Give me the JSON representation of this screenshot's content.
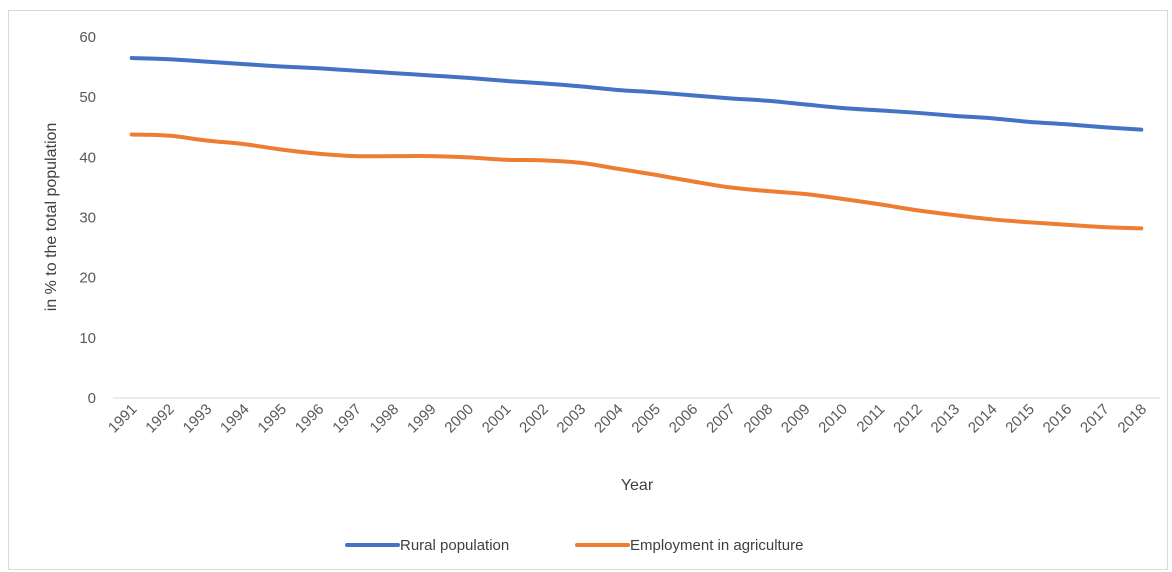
{
  "chart_data": {
    "type": "line",
    "title": "",
    "xlabel": "Year",
    "ylabel": "in % to the total population",
    "ylim": [
      0,
      60
    ],
    "yticks": [
      0,
      10,
      20,
      30,
      40,
      50,
      60
    ],
    "grid": false,
    "legend": "bottom",
    "x": [
      "1991",
      "1992",
      "1993",
      "1994",
      "1995",
      "1996",
      "1997",
      "1998",
      "1999",
      "2000",
      "2001",
      "2002",
      "2003",
      "2004",
      "2005",
      "2006",
      "2007",
      "2008",
      "2009",
      "2010",
      "2011",
      "2012",
      "2013",
      "2014",
      "2015",
      "2016",
      "2017",
      "2018"
    ],
    "series": [
      {
        "name": "Rural population",
        "color": "#4472C4",
        "values": [
          56.5,
          56.3,
          55.9,
          55.5,
          55.1,
          54.8,
          54.4,
          54.0,
          53.6,
          53.2,
          52.7,
          52.3,
          51.8,
          51.2,
          50.8,
          50.3,
          49.8,
          49.4,
          48.8,
          48.2,
          47.8,
          47.4,
          46.9,
          46.5,
          45.9,
          45.5,
          45.0,
          44.6
        ]
      },
      {
        "name": "Employment in agriculture",
        "color": "#ED7D31",
        "values": [
          43.8,
          43.6,
          42.8,
          42.2,
          41.3,
          40.6,
          40.2,
          40.2,
          40.2,
          40.0,
          39.6,
          39.5,
          39.1,
          38.1,
          37.1,
          36.0,
          35.0,
          34.4,
          33.9,
          33.1,
          32.2,
          31.2,
          30.4,
          29.7,
          29.2,
          28.8,
          28.4,
          28.2
        ]
      }
    ]
  }
}
